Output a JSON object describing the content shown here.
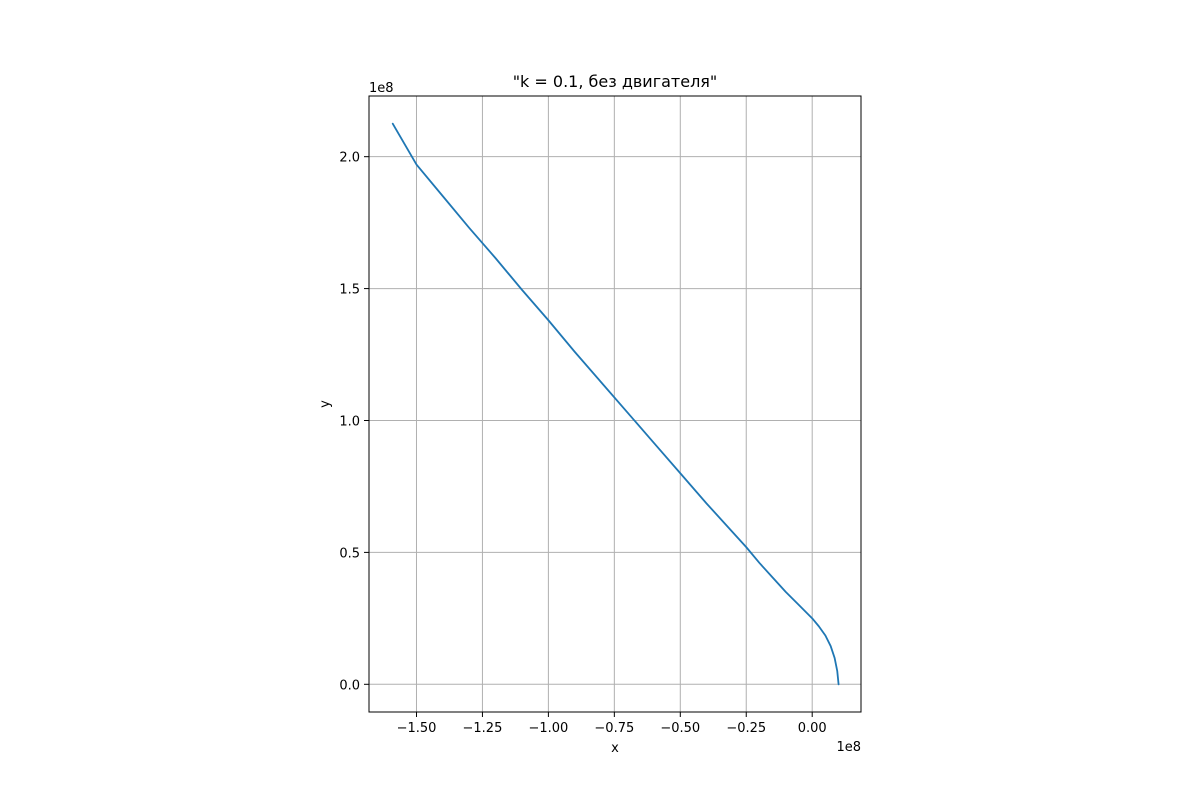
{
  "chart_data": {
    "type": "line",
    "title": "\"k = 0.1, без двигателя\"",
    "xlabel": "x",
    "ylabel": "y",
    "x_offset_label": "1e8",
    "y_offset_label": "1e8",
    "xlim": [
      -1.68,
      0.185
    ],
    "ylim": [
      -0.105,
      2.23
    ],
    "grid": true,
    "x_ticks": [
      {
        "value": -1.5,
        "label": "−1.50"
      },
      {
        "value": -1.25,
        "label": "−1.25"
      },
      {
        "value": -1.0,
        "label": "−1.00"
      },
      {
        "value": -0.75,
        "label": "−0.75"
      },
      {
        "value": -0.5,
        "label": "−0.50"
      },
      {
        "value": -0.25,
        "label": "−0.25"
      },
      {
        "value": 0.0,
        "label": "0.00"
      }
    ],
    "y_ticks": [
      {
        "value": 0.0,
        "label": "0.0"
      },
      {
        "value": 0.5,
        "label": "0.5"
      },
      {
        "value": 1.0,
        "label": "1.0"
      },
      {
        "value": 1.5,
        "label": "1.5"
      },
      {
        "value": 2.0,
        "label": "2.0"
      }
    ],
    "series": [
      {
        "color": "#1f77b4",
        "x": [
          0.1,
          0.095,
          0.085,
          0.07,
          0.05,
          0.025,
          0.0,
          -0.05,
          -0.1,
          -0.15,
          -0.2,
          -0.25,
          -0.3,
          -0.4,
          -0.5,
          -0.6,
          -0.7,
          -0.8,
          -0.9,
          -1.0,
          -1.1,
          -1.2,
          -1.3,
          -1.4,
          -1.5,
          -1.59
        ],
        "y": [
          0.0,
          0.05,
          0.1,
          0.145,
          0.185,
          0.22,
          0.25,
          0.3,
          0.35,
          0.405,
          0.46,
          0.52,
          0.575,
          0.685,
          0.8,
          0.915,
          1.03,
          1.145,
          1.26,
          1.38,
          1.495,
          1.615,
          1.73,
          1.85,
          1.97,
          2.125
        ]
      }
    ]
  }
}
